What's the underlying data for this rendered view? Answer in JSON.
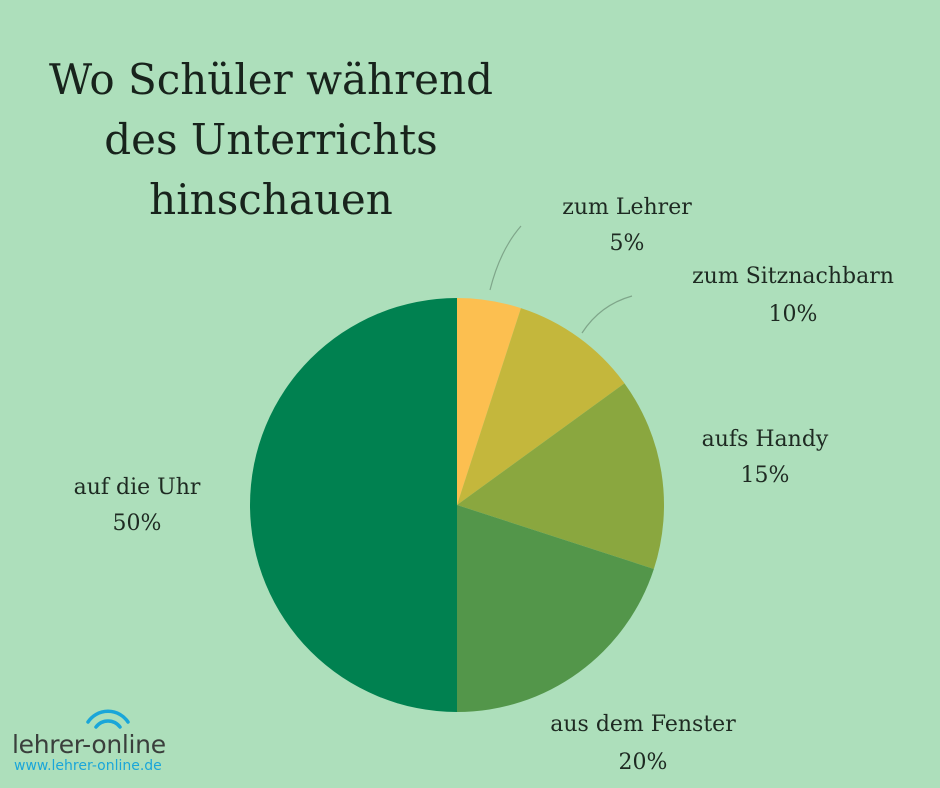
{
  "chart_data": {
    "type": "pie",
    "title_lines": [
      "Wo Schüler während",
      "des Unterrichts",
      "hinschauen"
    ],
    "start_angle_deg": 0,
    "direction": "clockwise",
    "slices": [
      {
        "label": "zum Lehrer",
        "value": 5,
        "value_label": "5%",
        "color": "#fcbf50"
      },
      {
        "label": "zum Sitznachbarn",
        "value": 10,
        "value_label": "10%",
        "color": "#c4b73c"
      },
      {
        "label": "aufs Handy",
        "value": 15,
        "value_label": "15%",
        "color": "#8aa73f"
      },
      {
        "label": "aus dem Fenster",
        "value": 20,
        "value_label": "20%",
        "color": "#53964a"
      },
      {
        "label": "auf die Uhr",
        "value": 50,
        "value_label": "50%",
        "color": "#008150"
      }
    ]
  },
  "logo": {
    "wordmark": "lehrer-online",
    "url": "www.lehrer-online.de",
    "accent_color": "#1aa6d9",
    "icon": "wifi-signal-icon"
  }
}
